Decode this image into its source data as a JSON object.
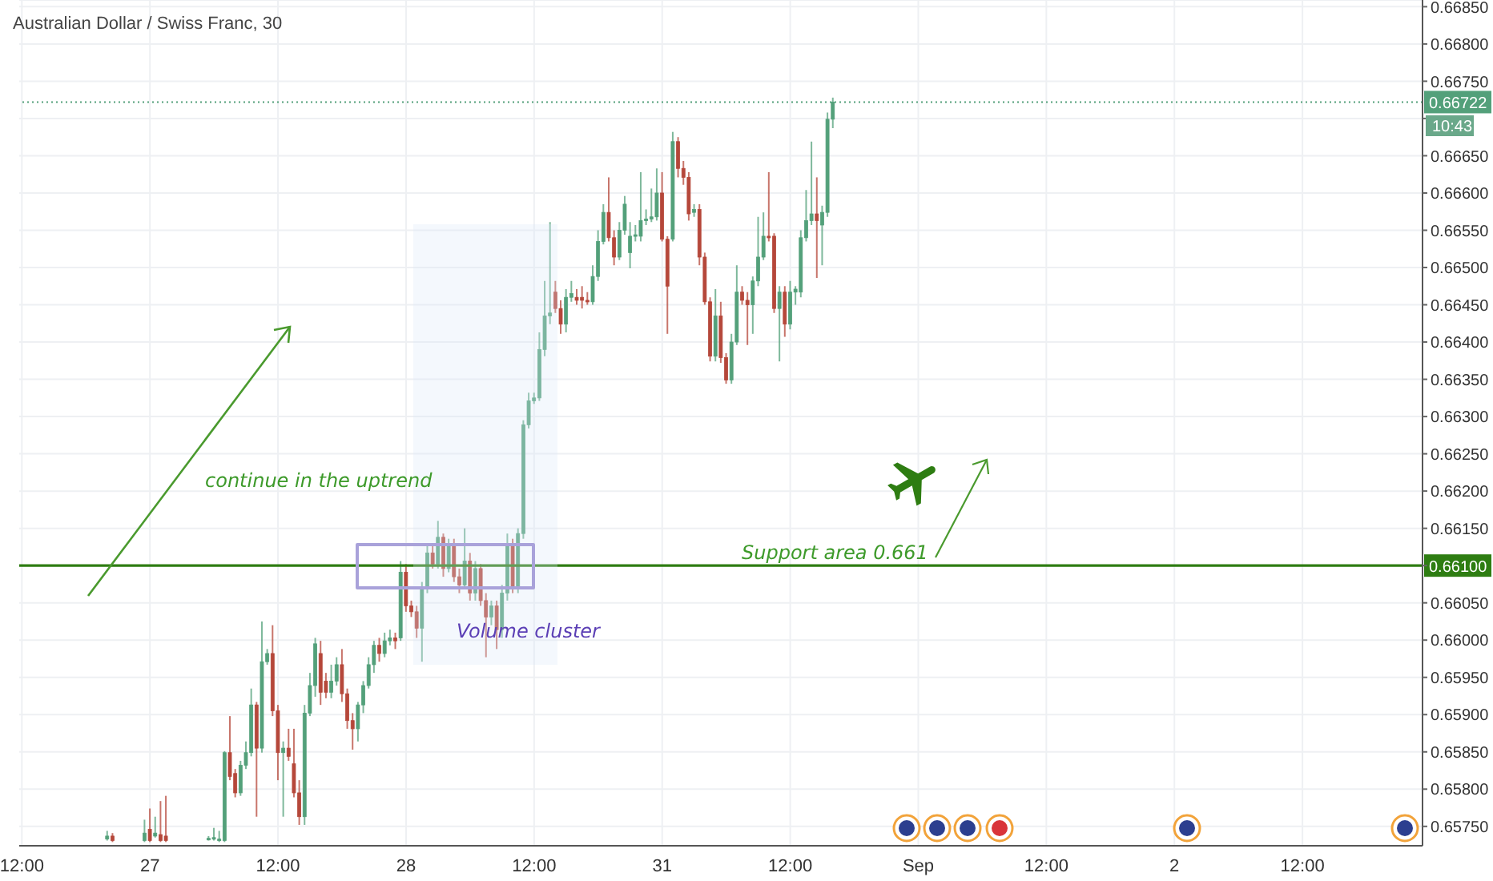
{
  "chart_data": {
    "type": "candlestick",
    "title": "Australian Dollar / Swiss Franc, 30",
    "categories": [
      "12:00",
      null,
      null,
      null,
      null,
      null,
      null,
      null,
      null,
      null,
      null,
      null,
      null,
      null,
      null,
      null,
      null,
      null,
      null,
      null,
      null,
      null,
      null,
      null,
      "27",
      null,
      null,
      null,
      null,
      null,
      null,
      null,
      null,
      null,
      null,
      null,
      null,
      null,
      null,
      null,
      null,
      null,
      null,
      null,
      null,
      null,
      null,
      null,
      "12:00",
      null,
      null,
      null,
      null,
      null,
      null,
      null,
      null,
      null,
      null,
      null,
      null,
      null,
      null,
      null,
      null,
      null,
      null,
      null,
      null,
      null,
      null,
      null,
      "28",
      null,
      null,
      null,
      null,
      null,
      null,
      null,
      null,
      null,
      null,
      null,
      null,
      null,
      null,
      null,
      null,
      null,
      null,
      null,
      null,
      null,
      null,
      null,
      "12:00",
      null,
      null,
      null,
      null,
      null,
      null,
      null,
      null,
      null,
      null,
      null,
      null,
      null,
      null,
      null,
      null,
      null,
      null,
      null,
      null,
      null,
      null,
      null,
      "31",
      null,
      null,
      null,
      null,
      null,
      null,
      null,
      null,
      null,
      null,
      null,
      null,
      null,
      null,
      null,
      null,
      null,
      null,
      null,
      null,
      null,
      null,
      null,
      "12:00",
      null,
      null,
      null,
      null,
      null,
      null,
      null,
      null,
      null,
      null,
      null,
      null,
      null,
      null,
      null,
      null,
      null,
      null,
      null,
      null,
      null,
      null,
      null,
      "Sep",
      null,
      null,
      null,
      null,
      null,
      null,
      null,
      null,
      null,
      null,
      null,
      null,
      null,
      null,
      null,
      null,
      null,
      null,
      null,
      null,
      null,
      null,
      null,
      "12:00",
      null,
      null,
      null,
      null,
      null,
      null,
      null,
      null,
      null,
      null,
      null,
      null,
      null,
      null,
      null,
      null,
      null,
      null,
      null,
      null,
      null,
      null,
      null,
      "2",
      null,
      null,
      null,
      null,
      null,
      null,
      null,
      null,
      null,
      null,
      null,
      null,
      null,
      null,
      null,
      null,
      null,
      null,
      null,
      null,
      null,
      null,
      null,
      "12:00",
      null,
      null,
      null,
      null,
      null,
      null,
      null,
      null,
      null,
      null,
      null,
      null,
      null,
      null,
      null,
      null,
      null,
      null,
      null,
      null,
      null,
      null
    ],
    "ohlc": [
      null,
      null,
      null,
      null,
      null,
      null,
      null,
      null,
      null,
      null,
      null,
      null,
      null,
      null,
      null,
      null,
      [
        0.65733,
        0.65744,
        0.65731,
        0.65737
      ],
      [
        0.65737,
        0.65741,
        0.65729,
        0.65731
      ],
      null,
      null,
      null,
      null,
      null,
      [
        0.65731,
        0.65759,
        0.65729,
        0.65741
      ],
      [
        0.65746,
        0.65774,
        0.65729,
        0.65731
      ],
      [
        0.65737,
        0.65763,
        0.65735,
        0.65741
      ],
      [
        0.65739,
        0.65784,
        0.65729,
        0.65731
      ],
      [
        0.65737,
        0.65791,
        0.65729,
        0.65731
      ],
      null,
      null,
      null,
      null,
      null,
      null,
      null,
      [
        0.65733,
        0.65737,
        0.65731,
        0.65734
      ],
      [
        0.65733,
        0.65748,
        0.65731,
        0.65735
      ],
      [
        0.65731,
        0.65744,
        0.65729,
        0.65733
      ],
      [
        0.65731,
        0.65851,
        0.65729,
        0.65849
      ],
      [
        0.65849,
        0.65898,
        0.65812,
        0.65817
      ],
      [
        0.65821,
        0.65827,
        0.65789,
        0.65795
      ],
      [
        0.65795,
        0.65838,
        0.65791,
        0.65832
      ],
      [
        0.65832,
        0.65864,
        0.65827,
        0.65849
      ],
      [
        0.65849,
        0.65935,
        0.65844,
        0.65913
      ],
      [
        0.65913,
        0.65917,
        0.65763,
        0.65855
      ],
      [
        0.65855,
        0.66025,
        0.65849,
        0.65971
      ],
      [
        0.65971,
        0.65988,
        0.65967,
        0.65982
      ],
      [
        0.65982,
        0.6602,
        0.65898,
        0.65905
      ],
      [
        0.65905,
        0.65913,
        0.65812,
        0.65849
      ],
      [
        0.65849,
        0.65864,
        0.65763,
        0.65855
      ],
      [
        0.65855,
        0.65881,
        0.65838,
        0.65844
      ],
      [
        0.65834,
        0.65881,
        0.65789,
        0.65795
      ],
      [
        0.65795,
        0.65812,
        0.65752,
        0.65763
      ],
      [
        0.65763,
        0.65913,
        0.65752,
        0.65902
      ],
      [
        0.65902,
        0.65956,
        0.65898,
        0.65939
      ],
      [
        0.65939,
        0.66003,
        0.65924,
        0.65995
      ],
      [
        0.65982,
        0.65999,
        0.65913,
        0.6593
      ],
      [
        0.65945,
        0.65956,
        0.65922,
        0.6593
      ],
      [
        0.6593,
        0.65967,
        0.65922,
        0.65945
      ],
      [
        0.65945,
        0.65977,
        0.65939,
        0.65967
      ],
      [
        0.65967,
        0.65988,
        0.65917,
        0.65928
      ],
      [
        0.65928,
        0.65935,
        0.65881,
        0.65892
      ],
      [
        0.65892,
        0.65902,
        0.65853,
        0.65881
      ],
      [
        0.65881,
        0.65917,
        0.65864,
        0.65913
      ],
      [
        0.65913,
        0.65945,
        0.65902,
        0.65939
      ],
      [
        0.65939,
        0.65977,
        0.65935,
        0.65967
      ],
      [
        0.65967,
        0.65999,
        0.65956,
        0.65993
      ],
      [
        0.65993,
        0.66003,
        0.65971,
        0.65982
      ],
      [
        0.65982,
        0.6601,
        0.65977,
        0.65999
      ],
      [
        0.65999,
        0.66014,
        0.65993,
        0.66003
      ],
      [
        0.66003,
        0.6601,
        0.65988,
        0.65999
      ],
      [
        0.66003,
        0.66106,
        0.65999,
        0.66091
      ],
      [
        0.66091,
        0.66102,
        0.66038,
        0.66046
      ],
      [
        0.66046,
        0.66053,
        0.66031,
        0.66038
      ],
      [
        0.66038,
        0.66046,
        0.66003,
        0.66016
      ],
      [
        0.66016,
        0.66078,
        0.65971,
        0.6607
      ],
      [
        0.6607,
        0.66128,
        0.66063,
        0.66117
      ],
      [
        0.66117,
        0.66128,
        0.66096,
        0.66102
      ],
      [
        0.66102,
        0.6616,
        0.66096,
        0.66138
      ],
      [
        0.66138,
        0.66143,
        0.66085,
        0.66096
      ],
      [
        0.66096,
        0.66136,
        0.66091,
        0.66128
      ],
      [
        0.66128,
        0.66136,
        0.66078,
        0.66085
      ],
      [
        0.66085,
        0.66096,
        0.66063,
        0.66074
      ],
      [
        0.66074,
        0.6615,
        0.6607,
        0.66106
      ],
      [
        0.66106,
        0.66117,
        0.66053,
        0.66063
      ],
      [
        0.66063,
        0.66106,
        0.66053,
        0.66096
      ],
      [
        0.66096,
        0.66102,
        0.66046,
        0.66053
      ],
      [
        0.66053,
        0.66063,
        0.65977,
        0.66031
      ],
      [
        0.66031,
        0.66053,
        0.6602,
        0.66046
      ],
      [
        0.66046,
        0.66053,
        0.65988,
        0.66014
      ],
      [
        0.66014,
        0.66074,
        0.66003,
        0.66063
      ],
      [
        0.66063,
        0.66143,
        0.66053,
        0.66128
      ],
      [
        0.66128,
        0.66136,
        0.66063,
        0.6607
      ],
      [
        0.6607,
        0.6615,
        0.66063,
        0.66143
      ],
      [
        0.66143,
        0.66295,
        0.66136,
        0.66289
      ],
      [
        0.66289,
        0.66332,
        0.66284,
        0.66321
      ],
      [
        0.66321,
        0.66332,
        0.66317,
        0.66325
      ],
      [
        0.66325,
        0.66413,
        0.66321,
        0.6639
      ],
      [
        0.6639,
        0.66482,
        0.66381,
        0.66435
      ],
      [
        0.66435,
        0.66561,
        0.66424,
        0.66439
      ],
      [
        0.66467,
        0.66482,
        0.66439,
        0.66445
      ],
      [
        0.66445,
        0.66456,
        0.66411,
        0.66424
      ],
      [
        0.66424,
        0.66471,
        0.66413,
        0.6646
      ],
      [
        0.6646,
        0.66482,
        0.66454,
        0.66465
      ],
      [
        0.6646,
        0.66471,
        0.6645,
        0.66456
      ],
      [
        0.6646,
        0.66475,
        0.66445,
        0.66456
      ],
      [
        0.66456,
        0.66467,
        0.6645,
        0.66454
      ],
      [
        0.66454,
        0.66503,
        0.6645,
        0.66488
      ],
      [
        0.66488,
        0.6655,
        0.66482,
        0.66535
      ],
      [
        0.66535,
        0.66585,
        0.66531,
        0.66574
      ],
      [
        0.66574,
        0.66621,
        0.66535,
        0.6654
      ],
      [
        0.6654,
        0.6655,
        0.66503,
        0.66514
      ],
      [
        0.66514,
        0.66561,
        0.6651,
        0.6655
      ],
      [
        0.6655,
        0.66596,
        0.66544,
        0.66585
      ],
      [
        0.6652,
        0.66561,
        0.66499,
        0.66542
      ],
      [
        0.66542,
        0.66557,
        0.66535,
        0.66544
      ],
      [
        0.66542,
        0.66628,
        0.66535,
        0.66563
      ],
      [
        0.66563,
        0.66578,
        0.66557,
        0.66565
      ],
      [
        0.66565,
        0.66606,
        0.66561,
        0.66568
      ],
      [
        0.66568,
        0.66633,
        0.66563,
        0.666
      ],
      [
        0.666,
        0.66628,
        0.66535,
        0.66538
      ],
      [
        0.66538,
        0.66542,
        0.66411,
        0.66475
      ],
      [
        0.66538,
        0.66682,
        0.66535,
        0.66669
      ],
      [
        0.66669,
        0.66675,
        0.66621,
        0.66633
      ],
      [
        0.66633,
        0.66643,
        0.66611,
        0.66621
      ],
      [
        0.66621,
        0.66628,
        0.66563,
        0.66572
      ],
      [
        0.66574,
        0.66585,
        0.66568,
        0.66578
      ],
      [
        0.66578,
        0.66585,
        0.66503,
        0.66514
      ],
      [
        0.66514,
        0.6652,
        0.6645,
        0.66454
      ],
      [
        0.66454,
        0.6646,
        0.66374,
        0.66381
      ],
      [
        0.66381,
        0.66471,
        0.66374,
        0.66435
      ],
      [
        0.66435,
        0.66454,
        0.66372,
        0.66379
      ],
      [
        0.66379,
        0.66385,
        0.66344,
        0.66349
      ],
      [
        0.66349,
        0.66411,
        0.66344,
        0.664
      ],
      [
        0.664,
        0.66503,
        0.66396,
        0.66467
      ],
      [
        0.66467,
        0.66475,
        0.6645,
        0.66456
      ],
      [
        0.66456,
        0.66467,
        0.66396,
        0.6645
      ],
      [
        0.6645,
        0.66488,
        0.66411,
        0.66482
      ],
      [
        0.66482,
        0.66568,
        0.66475,
        0.66514
      ],
      [
        0.66514,
        0.66574,
        0.6651,
        0.66542
      ],
      [
        0.66542,
        0.66628,
        0.66535,
        0.6654
      ],
      [
        0.66542,
        0.66546,
        0.66439,
        0.66445
      ],
      [
        0.66445,
        0.66475,
        0.66374,
        0.66467
      ],
      [
        0.66467,
        0.66475,
        0.66407,
        0.66424
      ],
      [
        0.66424,
        0.66482,
        0.66417,
        0.66467
      ],
      [
        0.66467,
        0.66475,
        0.6645,
        0.66471
      ],
      [
        0.66467,
        0.6655,
        0.6646,
        0.6654
      ],
      [
        0.6654,
        0.66604,
        0.66535,
        0.66563
      ],
      [
        0.66563,
        0.66669,
        0.66557,
        0.66572
      ],
      [
        0.66572,
        0.66621,
        0.66486,
        0.66563
      ],
      [
        0.66557,
        0.66583,
        0.66503,
        0.66574
      ],
      [
        0.66574,
        0.66708,
        0.66568,
        0.66699
      ],
      [
        0.66699,
        0.66728,
        0.66687,
        0.66722
      ],
      null,
      null,
      null,
      null,
      null,
      null,
      null,
      null,
      null,
      null,
      null,
      null,
      null,
      null,
      null,
      null,
      null,
      null,
      null,
      null,
      null,
      null,
      null,
      null,
      null,
      null,
      null,
      null,
      null,
      null,
      null,
      null,
      null,
      null,
      null,
      null,
      null,
      null,
      null,
      null,
      null,
      null,
      null,
      null,
      null,
      null,
      null,
      null,
      null,
      null,
      null,
      null,
      null,
      null,
      null,
      null,
      null,
      null,
      null,
      null,
      null,
      null,
      null,
      null,
      null,
      null,
      null,
      null,
      null,
      null,
      null,
      null,
      null,
      null,
      null,
      null,
      null,
      null,
      null,
      null,
      null,
      null,
      null,
      null,
      null,
      null,
      null,
      null,
      null,
      null,
      null,
      null,
      null,
      null,
      null,
      null,
      null,
      null,
      null,
      null,
      null,
      null,
      null,
      null,
      null,
      null,
      null,
      null,
      null,
      null
    ],
    "colors": [
      null,
      null,
      null,
      null,
      null,
      null,
      null,
      null,
      null,
      null,
      null,
      null,
      null,
      null,
      null,
      null,
      "#53a07a",
      "#b5473a",
      null,
      null,
      null,
      null,
      null,
      "#53a07a",
      "#b5473a",
      "#53a07a",
      "#b5473a",
      "#b5473a",
      null,
      null,
      null,
      null,
      null,
      null,
      null,
      "#53a07a",
      "#53a07a",
      "#53a07a",
      "#53a07a",
      "#b5473a",
      "#b5473a",
      "#53a07a",
      "#53a07a",
      "#53a07a",
      "#b5473a",
      "#53a07a",
      "#53a07a",
      "#b5473a",
      "#b5473a",
      "#53a07a",
      "#b5473a",
      "#b5473a",
      "#b5473a",
      "#53a07a",
      "#53a07a",
      "#53a07a",
      "#b5473a",
      "#b5473a",
      "#53a07a",
      "#53a07a",
      "#b5473a",
      "#b5473a",
      "#b5473a",
      "#53a07a",
      "#53a07a",
      "#53a07a",
      "#53a07a",
      "#b5473a",
      "#53a07a",
      "#53a07a",
      "#b5473a",
      "#53a07a",
      "#b5473a",
      "#b5473a",
      "#b5473a",
      "#53a07a",
      "#53a07a",
      "#b5473a",
      "#53a07a",
      "#b5473a",
      "#53a07a",
      "#b5473a",
      "#b5473a",
      "#53a07a",
      "#b5473a",
      "#53a07a",
      "#b5473a",
      "#b5473a",
      "#53a07a",
      "#b5473a",
      "#53a07a",
      "#53a07a",
      "#b5473a",
      "#53a07a",
      "#53a07a",
      "#53a07a",
      "#53a07a",
      "#53a07a",
      "#53a07a",
      "#53a07a",
      "#b5473a",
      "#b5473a",
      "#53a07a",
      "#53a07a",
      "#b5473a",
      "#b5473a",
      "#b5473a",
      "#53a07a",
      "#53a07a",
      "#53a07a",
      "#b5473a",
      "#b5473a",
      "#53a07a",
      "#53a07a",
      "#53a07a",
      "#53a07a",
      "#53a07a",
      "#53a07a",
      "#53a07a",
      "#53a07a",
      "#b5473a",
      "#b5473a",
      "#53a07a",
      "#b5473a",
      "#b5473a",
      "#b5473a",
      "#53a07a",
      "#b5473a",
      "#b5473a",
      "#b5473a",
      "#53a07a",
      "#b5473a",
      "#b5473a",
      "#53a07a",
      "#53a07a",
      "#b5473a",
      "#b5473a",
      "#53a07a",
      "#53a07a",
      "#53a07a",
      "#b5473a",
      "#b5473a",
      "#53a07a",
      "#b5473a",
      "#53a07a",
      "#53a07a",
      "#53a07a",
      "#53a07a",
      "#53a07a",
      "#b5473a",
      "#53a07a",
      "#53a07a",
      "#53a07a",
      null,
      null,
      null,
      null,
      null,
      null,
      null,
      null,
      null,
      null,
      null,
      null,
      null,
      null,
      null,
      null,
      null,
      null,
      null,
      null,
      null,
      null,
      null,
      null,
      null,
      null,
      null,
      null,
      null,
      null,
      null,
      null,
      null,
      null,
      null,
      null,
      null,
      null,
      null,
      null,
      null,
      null,
      null,
      null,
      null,
      null,
      null,
      null,
      null,
      null,
      null,
      null,
      null,
      null,
      null,
      null,
      null,
      null,
      null,
      null,
      null,
      null,
      null,
      null,
      null,
      null,
      null,
      null,
      null,
      null,
      null,
      null,
      null,
      null,
      null,
      null,
      null,
      null,
      null,
      null,
      null,
      null,
      null,
      null,
      null,
      null,
      null,
      null,
      null,
      null,
      null,
      null,
      null,
      null,
      null,
      null,
      null,
      null,
      null,
      null,
      null,
      null,
      null,
      null,
      null,
      null,
      null,
      null,
      null,
      null
    ],
    "ylim": [
      0.65724,
      0.66859
    ],
    "yticks": [
      {
        "value": 0.6575,
        "label": "0.65750"
      },
      {
        "value": 0.658,
        "label": "0.65800"
      },
      {
        "value": 0.6585,
        "label": "0.65850"
      },
      {
        "value": 0.659,
        "label": "0.65900"
      },
      {
        "value": 0.6595,
        "label": "0.65950"
      },
      {
        "value": 0.66,
        "label": "0.66000"
      },
      {
        "value": 0.6605,
        "label": "0.66050"
      },
      {
        "value": 0.661,
        "label": null
      },
      {
        "value": 0.6615,
        "label": "0.66150"
      },
      {
        "value": 0.662,
        "label": "0.66200"
      },
      {
        "value": 0.6625,
        "label": "0.66250"
      },
      {
        "value": 0.663,
        "label": "0.66300"
      },
      {
        "value": 0.6635,
        "label": "0.66350"
      },
      {
        "value": 0.664,
        "label": "0.66400"
      },
      {
        "value": 0.6645,
        "label": "0.66450"
      },
      {
        "value": 0.665,
        "label": "0.66500"
      },
      {
        "value": 0.6655,
        "label": "0.66550"
      },
      {
        "value": 0.666,
        "label": "0.66600"
      },
      {
        "value": 0.6665,
        "label": "0.66650"
      },
      {
        "value": 0.667,
        "label": null
      },
      {
        "value": 0.6675,
        "label": "0.66750"
      },
      {
        "value": 0.668,
        "label": "0.66800"
      },
      {
        "value": 0.6685,
        "label": "0.66850"
      }
    ],
    "ref_lines": [
      {
        "axis": "y",
        "value": 0.661,
        "label": "0.66100",
        "color": "#2e7d12",
        "line_style": "solid"
      },
      {
        "axis": "y",
        "value": 0.66722,
        "label": "0.66722",
        "color": "#53a07a",
        "line_style": "dotted"
      }
    ],
    "annotations": [
      "continue in the uptrend",
      "Support area 0.661",
      "Volume cluster",
      "10:43"
    ],
    "grid": true
  }
}
